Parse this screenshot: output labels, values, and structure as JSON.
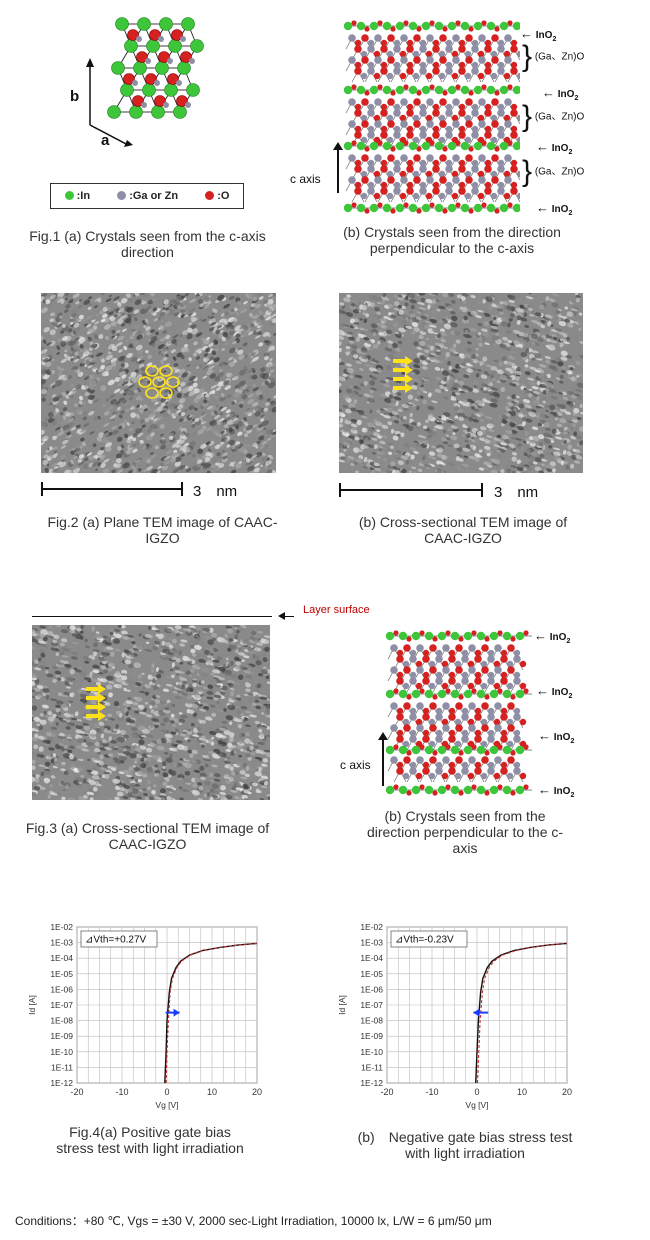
{
  "fig1": {
    "axis_b": "b",
    "axis_a": "a",
    "legend": {
      "in": ":In",
      "ga_zn": ":Ga or Zn",
      "o": ":O"
    },
    "layer_inO2": "InO2",
    "layer_inO2_base": "InO",
    "layer_inO2_sub": "2",
    "layer_gazno": "(Ga、Zn)O",
    "c_axis": "c axis",
    "caption_a": "Fig.1 (a) Crystals seen from the c-axis direction",
    "caption_b": "(b) Crystals seen from the direction perpendicular to the c-axis"
  },
  "fig2": {
    "scale_a": "3　nm",
    "scale_b": "3　nm",
    "caption_a": "Fig.2 (a) Plane TEM image of CAAC-IGZO",
    "caption_b": "(b) Cross-sectional TEM image of CAAC-IGZO"
  },
  "fig3": {
    "layer_surface": "Layer surface",
    "c_axis": "c axis",
    "caption_a": "Fig.3 (a) Cross-sectional TEM image of CAAC-IGZO",
    "caption_b": "(b) Crystals seen from the direction perpendicular to the c-axis"
  },
  "fig4": {
    "caption_a": "Fig.4(a) Positive gate bias stress test with light irradiation",
    "caption_b": "(b)　Negative gate bias stress test with light irradiation"
  },
  "conditions": "Conditions：+80 ℃, Vgs = ±30 V, 2000  sec-Light Irradiation, 10000  lx, L/W = 6 μm/50 μm",
  "colors": {
    "in": "#3ec63a",
    "ga_zn": "#8e8fa6",
    "o": "#d62121",
    "curve": "#c03030",
    "arrow": "#1a3cff"
  },
  "chart_data": [
    {
      "type": "line",
      "annotation": "⊿Vth=+0.27V",
      "xlabel": "Vg [V]",
      "ylabel": "Id [A]",
      "xlim": [
        -20,
        20
      ],
      "xticks": [
        -20,
        -10,
        0,
        10,
        20
      ],
      "ylog_range": [
        -12,
        -2
      ],
      "yticks": [
        "1E-02",
        "1E-03",
        "1E-04",
        "1E-05",
        "1E-06",
        "1E-07",
        "1E-08",
        "1E-09",
        "1E-10",
        "1E-11",
        "1E-12"
      ],
      "grid": true,
      "series": [
        {
          "x": [
            -0.5,
            -0.2,
            0,
            0.5,
            1,
            2,
            3,
            5,
            8,
            12,
            16,
            20
          ],
          "y": [
            -12,
            -10,
            -8,
            -6.2,
            -5.3,
            -4.6,
            -4.2,
            -3.8,
            -3.5,
            -3.3,
            -3.15,
            -3.05
          ]
        },
        {
          "x": [
            -0.2,
            0,
            0.3,
            0.7,
            1.2,
            2.2,
            3.2,
            5.2,
            8.2,
            12,
            16,
            20
          ],
          "y": [
            -12,
            -10,
            -8,
            -6.2,
            -5.3,
            -4.6,
            -4.2,
            -3.8,
            -3.5,
            -3.3,
            -3.15,
            -3.05
          ]
        }
      ],
      "shift_arrow": {
        "from": -0.3,
        "to": 2.8,
        "y": -8
      }
    },
    {
      "type": "line",
      "annotation": "⊿Vth=-0.23V",
      "xlabel": "Vg [V]",
      "ylabel": "Id [A]",
      "xlim": [
        -20,
        20
      ],
      "xticks": [
        -20,
        -10,
        0,
        10,
        20
      ],
      "ylog_range": [
        -12,
        -2
      ],
      "yticks": [
        "1E-02",
        "1E-03",
        "1E-04",
        "1E-05",
        "1E-06",
        "1E-07",
        "1E-08",
        "1E-09",
        "1E-10",
        "1E-11",
        "1E-12"
      ],
      "grid": true,
      "series": [
        {
          "x": [
            -0.3,
            0,
            0.3,
            0.8,
            1.3,
            2.3,
            3.3,
            5.3,
            8.3,
            12,
            16,
            20
          ],
          "y": [
            -12,
            -10,
            -8,
            -6.2,
            -5.3,
            -4.6,
            -4.2,
            -3.8,
            -3.5,
            -3.3,
            -3.15,
            -3.05
          ]
        },
        {
          "x": [
            0.1,
            0.4,
            0.7,
            1.2,
            1.7,
            2.7,
            3.7,
            5.7,
            8.7,
            12.2,
            16.2,
            20
          ],
          "y": [
            -12,
            -10,
            -8,
            -6.2,
            -5.3,
            -4.6,
            -4.2,
            -3.8,
            -3.5,
            -3.3,
            -3.15,
            -3.05
          ]
        }
      ],
      "shift_arrow": {
        "from": 2.5,
        "to": -0.8,
        "y": -8
      }
    }
  ]
}
